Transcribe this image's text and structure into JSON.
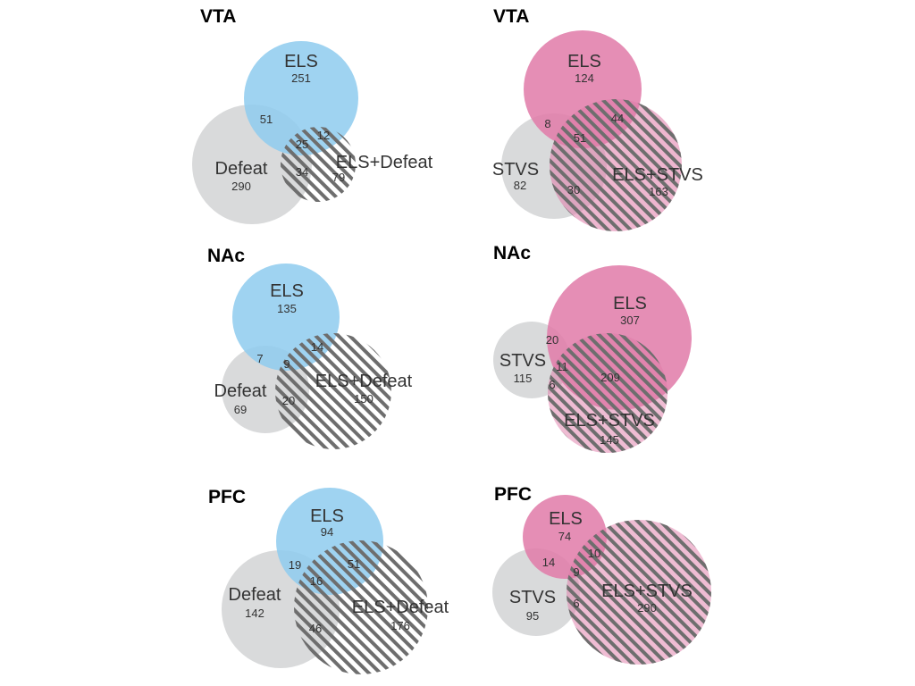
{
  "colors": {
    "els_blue": "#8ecbef",
    "els_pink": "#e07aa8",
    "defeat_gray": "#d9dadb",
    "hatch_stripe": "#6e6e6e",
    "title_text": "#000000",
    "label_text": "#333333"
  },
  "panels": {
    "defeat_vta": {
      "title": "VTA",
      "els": {
        "label": "ELS",
        "count": "251"
      },
      "other": {
        "label": "Defeat",
        "count": "290"
      },
      "combo": {
        "label": "ELS+Defeat",
        "count": "79"
      },
      "overlaps": {
        "els_other": "51",
        "all_three": "25",
        "els_combo": "12",
        "other_combo": "34"
      }
    },
    "stvs_vta": {
      "title": "VTA",
      "els": {
        "label": "ELS",
        "count": "124"
      },
      "other": {
        "label": "STVS",
        "count": "82"
      },
      "combo": {
        "label": "ELS+STVS",
        "count": "163"
      },
      "overlaps": {
        "els_other": "8",
        "all_three": "51",
        "els_combo": "44",
        "other_combo": "30"
      }
    },
    "defeat_nac": {
      "title": "NAc",
      "els": {
        "label": "ELS",
        "count": "135"
      },
      "other": {
        "label": "Defeat",
        "count": "69"
      },
      "combo": {
        "label": "ELS+Defeat",
        "count": "150"
      },
      "overlaps": {
        "els_other": "7",
        "all_three": "9",
        "els_combo": "14",
        "other_combo": "20"
      }
    },
    "stvs_nac": {
      "title": "NAc",
      "els": {
        "label": "ELS",
        "count": "307"
      },
      "other": {
        "label": "STVS",
        "count": "115"
      },
      "combo": {
        "label": "ELS+STVS",
        "count": "145"
      },
      "overlaps": {
        "els_other": "20",
        "all_three": "11",
        "els_combo": "209",
        "other_combo": "6"
      }
    },
    "defeat_pfc": {
      "title": "PFC",
      "els": {
        "label": "ELS",
        "count": "94"
      },
      "other": {
        "label": "Defeat",
        "count": "142"
      },
      "combo": {
        "label": "ELS+Defeat",
        "count": "176"
      },
      "overlaps": {
        "els_other": "19",
        "all_three": "16",
        "els_combo": "51",
        "other_combo": "46"
      }
    },
    "stvs_pfc": {
      "title": "PFC",
      "els": {
        "label": "ELS",
        "count": "74"
      },
      "other": {
        "label": "STVS",
        "count": "95"
      },
      "combo": {
        "label": "ELS+STVS",
        "count": "290"
      },
      "overlaps": {
        "els_other": "14",
        "all_three": "9",
        "els_combo": "10",
        "other_combo": "6"
      }
    }
  }
}
